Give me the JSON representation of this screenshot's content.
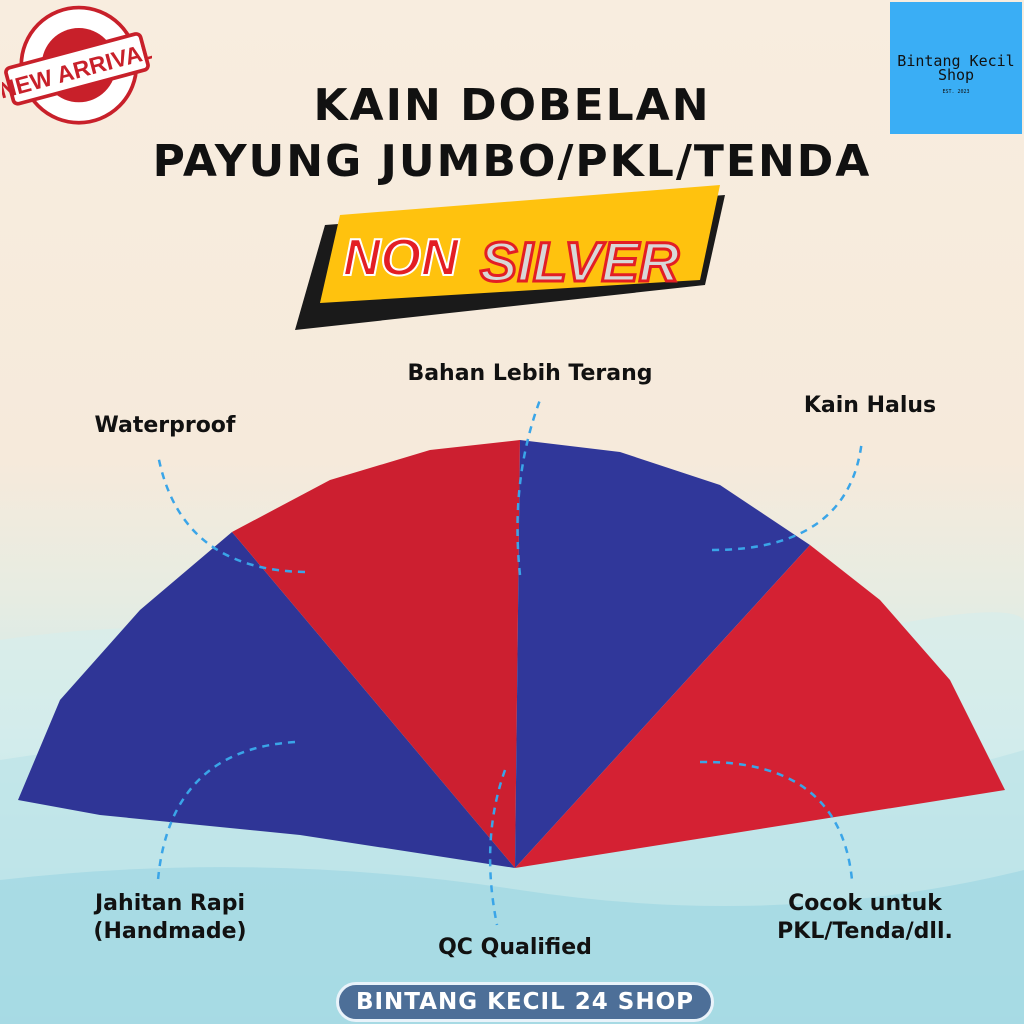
{
  "stamp": {
    "text_outer": "NEW ARRIVAL",
    "text_main": "NEW ARRIVAL"
  },
  "logo": {
    "name": "Bintang Kecil Shop",
    "est": "EST. 2023"
  },
  "title": {
    "line1": "KAIN DOBELAN",
    "line2": "PAYUNG JUMBO/PKL/TENDA"
  },
  "banner": {
    "non": "NON",
    "silver": "SILVER"
  },
  "features": {
    "top": "Bahan Lebih Terang",
    "left_top": "Waterproof",
    "right_top": "Kain Halus",
    "left_bottom_1": "Jahitan Rapi",
    "left_bottom_2": "(Handmade)",
    "bottom": "QC Qualified",
    "right_bottom_1": "Cocok untuk",
    "right_bottom_2": "PKL/Tenda/dll."
  },
  "footer": {
    "shop": "BINTANG KECIL 24 SHOP"
  },
  "colors": {
    "red": "#d0202e",
    "blue": "#2f3596",
    "accent": "#ffc20e",
    "arrow": "#3aa5e8"
  }
}
